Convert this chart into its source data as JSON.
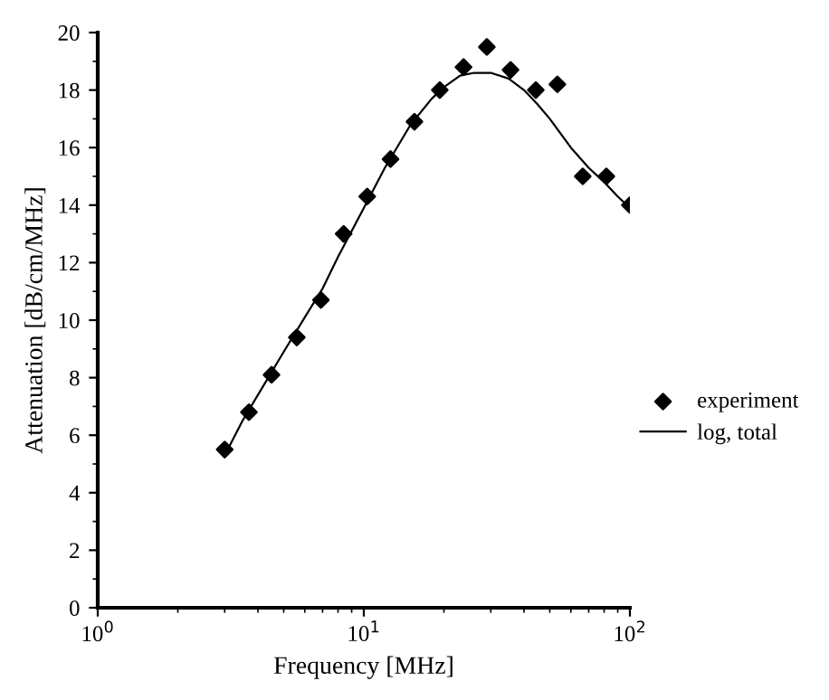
{
  "chart_data": {
    "type": "scatter",
    "xlabel": "Frequency [MHz]",
    "ylabel": "Attenuation [dB/cm/MHz]",
    "log": "x",
    "xlim": [
      1,
      100
    ],
    "ylim": [
      0,
      20
    ],
    "xticks": [
      {
        "value": 1,
        "label": "10$^{0}$"
      },
      {
        "value": 10,
        "label": "10$^{1}$"
      },
      {
        "value": 100,
        "label": "10$^{2}$"
      }
    ],
    "yticks": [
      0,
      2,
      4,
      6,
      8,
      10,
      12,
      14,
      16,
      18,
      20
    ],
    "grid": false,
    "legend": "right",
    "series": [
      {
        "name": "experiment",
        "marker": "diamond",
        "color": "#000000",
        "x": [
          3.0,
          3.7,
          4.5,
          5.6,
          6.9,
          8.4,
          10.3,
          12.6,
          15.5,
          19.3,
          23.7,
          29,
          35.6,
          44.3,
          53.4,
          66.5,
          81.6,
          100
        ],
        "values": [
          5.5,
          6.8,
          8.1,
          9.4,
          10.7,
          13.0,
          14.3,
          15.6,
          16.9,
          18.0,
          18.8,
          19.5,
          18.7,
          18.0,
          18.2,
          15.0,
          15.0,
          14.0
        ]
      },
      {
        "name": "log, total",
        "type": "line",
        "line_style": "solid",
        "color": "#000000",
        "x": [
          3,
          3.5,
          4,
          5,
          6,
          7,
          8,
          10,
          12,
          15,
          18,
          20,
          23,
          26,
          30,
          35,
          40,
          45,
          50,
          60,
          70,
          80,
          90,
          100
        ],
        "values": [
          5.3,
          6.5,
          7.4,
          8.9,
          10.1,
          11.1,
          12.2,
          13.9,
          15.3,
          16.8,
          17.7,
          18.1,
          18.5,
          18.6,
          18.6,
          18.4,
          18.0,
          17.5,
          17.0,
          16.0,
          15.3,
          14.8,
          14.3,
          13.9
        ]
      }
    ]
  }
}
